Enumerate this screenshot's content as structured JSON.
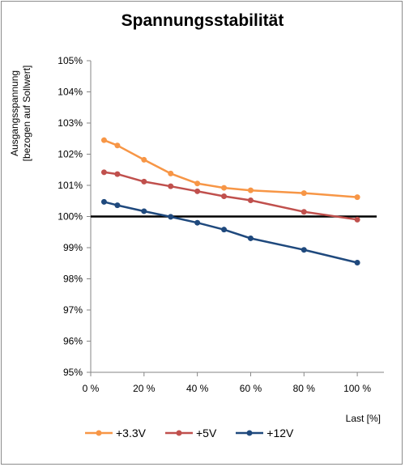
{
  "chart_data": {
    "type": "line",
    "title": "Spannungsstabilität",
    "ylabel_lines": [
      "Ausgangsspannung",
      "[bezogen auf Sollwert]"
    ],
    "xlabel": "Last [%]",
    "xlim": [
      0,
      110
    ],
    "ylim": [
      95,
      105
    ],
    "x_ticks": [
      0,
      20,
      40,
      60,
      80,
      100
    ],
    "x_tick_labels": [
      "0 %",
      "20 %",
      "40 %",
      "60 %",
      "80 %",
      "100 %"
    ],
    "y_ticks": [
      95,
      96,
      97,
      98,
      99,
      100,
      101,
      102,
      103,
      104,
      105
    ],
    "y_tick_labels": [
      "95%",
      "96%",
      "97%",
      "98%",
      "99%",
      "100%",
      "101%",
      "102%",
      "103%",
      "104%",
      "105%"
    ],
    "grid": false,
    "legend_position": "bottom",
    "reference_line": {
      "y": 100,
      "color": "#000000"
    },
    "series": [
      {
        "name": "+3.3V",
        "color": "#F79646",
        "x": [
          5,
          10,
          20,
          30,
          40,
          50,
          60,
          80,
          100
        ],
        "y": [
          102.45,
          102.28,
          101.82,
          101.38,
          101.06,
          100.92,
          100.84,
          100.75,
          100.62
        ]
      },
      {
        "name": "+5V",
        "color": "#C0504D",
        "x": [
          5,
          10,
          20,
          30,
          40,
          50,
          60,
          80,
          100
        ],
        "y": [
          101.42,
          101.36,
          101.12,
          100.97,
          100.81,
          100.65,
          100.52,
          100.15,
          99.9
        ]
      },
      {
        "name": "+12V",
        "color": "#1F497D",
        "x": [
          5,
          10,
          20,
          30,
          40,
          50,
          60,
          80,
          100
        ],
        "y": [
          100.47,
          100.36,
          100.17,
          99.99,
          99.8,
          99.58,
          99.3,
          98.93,
          98.52
        ]
      }
    ]
  }
}
